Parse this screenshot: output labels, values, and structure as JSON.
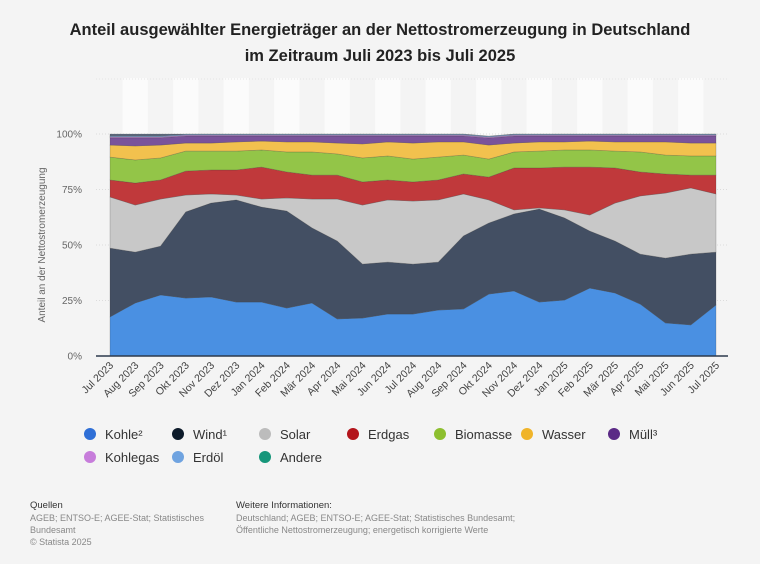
{
  "chart_data": {
    "type": "area",
    "stacked": true,
    "title": "Anteil ausgewählter Energieträger an der Nettostromerzeugung in Deutschland im Zeitraum Juli 2023 bis Juli 2025",
    "title_lines": [
      "Anteil ausgewählter Energieträger an der Nettostromerzeugung in Deutschland",
      "im Zeitraum Juli 2023 bis Juli 2025"
    ],
    "xlabel": "",
    "ylabel": "Anteil an der Nettostromerzeugung",
    "ylim": [
      0,
      100
    ],
    "yticks": [
      "0%",
      "25%",
      "50%",
      "75%",
      "100%"
    ],
    "ytick_values": [
      0,
      25,
      50,
      75,
      100
    ],
    "grid": true,
    "legend_position": "bottom",
    "categories": [
      "Jul 2023",
      "Aug 2023",
      "Sep 2023",
      "Okt 2023",
      "Nov 2023",
      "Dez 2023",
      "Jan 2024",
      "Feb 2024",
      "Mär 2024",
      "Apr 2024",
      "Mai 2024",
      "Jun 2024",
      "Jul 2024",
      "Aug 2024",
      "Sep 2024",
      "Okt 2024",
      "Nov 2024",
      "Dez 2024",
      "Jan 2025",
      "Feb 2025",
      "Mär 2025",
      "Apr 2025",
      "Mai 2025",
      "Jun 2025",
      "Jul 2025"
    ],
    "series": [
      {
        "name": "Kohle²",
        "color": "#4a90e2",
        "legend_color": "#2f6fd6",
        "values": [
          17.6,
          23.9,
          27.5,
          26.1,
          26.6,
          24.3,
          24.3,
          21.6,
          23.9,
          16.7,
          17.1,
          18.9,
          18.9,
          20.7,
          21.2,
          27.9,
          29.3,
          24.3,
          25.2,
          30.6,
          28.4,
          23.4,
          14.9,
          14.0,
          23.0
        ]
      },
      {
        "name": "Wind¹",
        "color": "#434f63",
        "legend_color": "#0d1b2a",
        "values": [
          31.0,
          22.9,
          22.0,
          38.8,
          42.3,
          46.0,
          42.8,
          43.7,
          33.8,
          35.1,
          24.3,
          23.4,
          22.5,
          21.6,
          32.9,
          32.0,
          34.7,
          41.9,
          37.0,
          25.7,
          23.4,
          22.5,
          29.2,
          31.9,
          23.8
        ]
      },
      {
        "name": "Solar",
        "color": "#c8c8c8",
        "legend_color": "#bcbcbc",
        "values": [
          23.0,
          21.2,
          21.2,
          7.6,
          4.1,
          2.2,
          3.6,
          5.9,
          13.0,
          18.9,
          26.6,
          28.0,
          28.4,
          28.0,
          18.9,
          10.4,
          1.8,
          0.5,
          3.6,
          7.2,
          17.1,
          26.2,
          29.3,
          29.8,
          26.2
        ]
      },
      {
        "name": "Erdgas",
        "color": "#c0393b",
        "legend_color": "#b3141b",
        "values": [
          7.7,
          9.9,
          8.6,
          10.8,
          10.8,
          11.3,
          14.4,
          11.7,
          10.8,
          10.8,
          10.4,
          9.0,
          8.6,
          9.0,
          9.0,
          10.3,
          18.9,
          18.0,
          19.3,
          21.6,
          15.8,
          10.8,
          8.6,
          5.8,
          8.5
        ]
      },
      {
        "name": "Biomasse",
        "color": "#93c548",
        "legend_color": "#8dbf2f",
        "values": [
          10.3,
          10.4,
          9.9,
          9.0,
          8.5,
          8.5,
          7.7,
          9.0,
          10.4,
          9.5,
          10.8,
          10.8,
          10.3,
          10.3,
          8.5,
          8.1,
          7.2,
          7.6,
          7.7,
          7.7,
          7.6,
          9.0,
          8.5,
          8.6,
          8.6
        ]
      },
      {
        "name": "Wasser",
        "color": "#f2c14e",
        "legend_color": "#f0b429",
        "values": [
          5.4,
          6.3,
          5.8,
          3.6,
          3.6,
          4.1,
          4.0,
          4.5,
          4.5,
          4.9,
          6.3,
          6.3,
          7.2,
          6.8,
          5.9,
          6.3,
          4.0,
          4.1,
          3.6,
          4.0,
          4.1,
          4.5,
          5.9,
          5.8,
          5.8
        ]
      },
      {
        "name": "Müll³",
        "color": "#7a539a",
        "legend_color": "#5b2a86",
        "values": [
          3.3,
          3.7,
          3.3,
          3.2,
          3.2,
          2.7,
          2.3,
          2.7,
          2.7,
          3.2,
          3.6,
          2.7,
          3.2,
          2.7,
          2.7,
          3.2,
          3.2,
          2.7,
          2.7,
          2.3,
          2.7,
          2.7,
          2.7,
          3.2,
          3.2
        ]
      },
      {
        "name": "Kohlegas",
        "color": "#c387d6",
        "legend_color": "#c77ddb",
        "values": [
          0.4,
          0.4,
          0.4,
          0.4,
          0.4,
          0.4,
          0.4,
          0.4,
          0.4,
          0.4,
          0.4,
          0.4,
          0.4,
          0.4,
          0.4,
          0.4,
          0.4,
          0.4,
          0.4,
          0.4,
          0.4,
          0.4,
          0.4,
          0.4,
          0.4
        ]
      },
      {
        "name": "Erdöl",
        "color": "#7ea7d8",
        "legend_color": "#6fa3e0",
        "values": [
          0.4,
          0.4,
          0.4,
          0.4,
          0.4,
          0.4,
          0.4,
          0.4,
          0.4,
          0.4,
          0.4,
          0.4,
          0.4,
          0.4,
          0.4,
          0.4,
          0.4,
          0.4,
          0.4,
          0.4,
          0.4,
          0.4,
          0.4,
          0.4,
          0.4
        ]
      },
      {
        "name": "Andere",
        "color": "#5d6b7e",
        "legend_color": "#16967a",
        "values": [
          0.9,
          0.9,
          0.9,
          0.1,
          0.1,
          0.1,
          0.1,
          0.1,
          0.1,
          0.1,
          0.1,
          0.1,
          0.1,
          0.1,
          0.1,
          0.0,
          0.1,
          0.1,
          0.1,
          0.1,
          0.1,
          0.1,
          0.1,
          0.1,
          0.1
        ]
      }
    ]
  },
  "legend": [
    {
      "label": "Kohle²",
      "color": "#2f6fd6"
    },
    {
      "label": "Wind¹",
      "color": "#0d1b2a"
    },
    {
      "label": "Solar",
      "color": "#bcbcbc"
    },
    {
      "label": "Erdgas",
      "color": "#b3141b"
    },
    {
      "label": "Biomasse",
      "color": "#8dbf2f"
    },
    {
      "label": "Wasser",
      "color": "#f0b429"
    },
    {
      "label": "Müll³",
      "color": "#5b2a86"
    },
    {
      "label": "Kohlegas",
      "color": "#c77ddb"
    },
    {
      "label": "Erdöl",
      "color": "#6fa3e0"
    },
    {
      "label": "Andere",
      "color": "#16967a"
    }
  ],
  "footer": {
    "sources_heading": "Quellen",
    "sources_lines": [
      "AGEB; ENTSO-E; AGEE-Stat; Statistisches",
      "Bundesamt",
      "© Statista 2025"
    ],
    "info_heading": "Weitere Informationen:",
    "info_lines": [
      "Deutschland; AGEB; ENTSO-E; AGEE-Stat; Statistisches Bundesamt;",
      "Öffentliche Nettostromerzeugung; energetisch korrigierte Werte"
    ]
  }
}
